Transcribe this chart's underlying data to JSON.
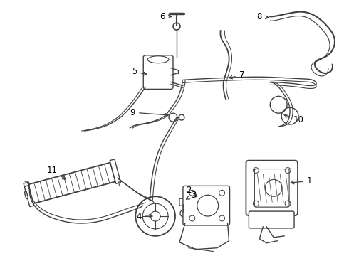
{
  "bg_color": "#ffffff",
  "line_color": "#404040",
  "label_color": "#000000",
  "lw": 1.0,
  "figsize": [
    4.9,
    3.6
  ],
  "dpi": 100
}
